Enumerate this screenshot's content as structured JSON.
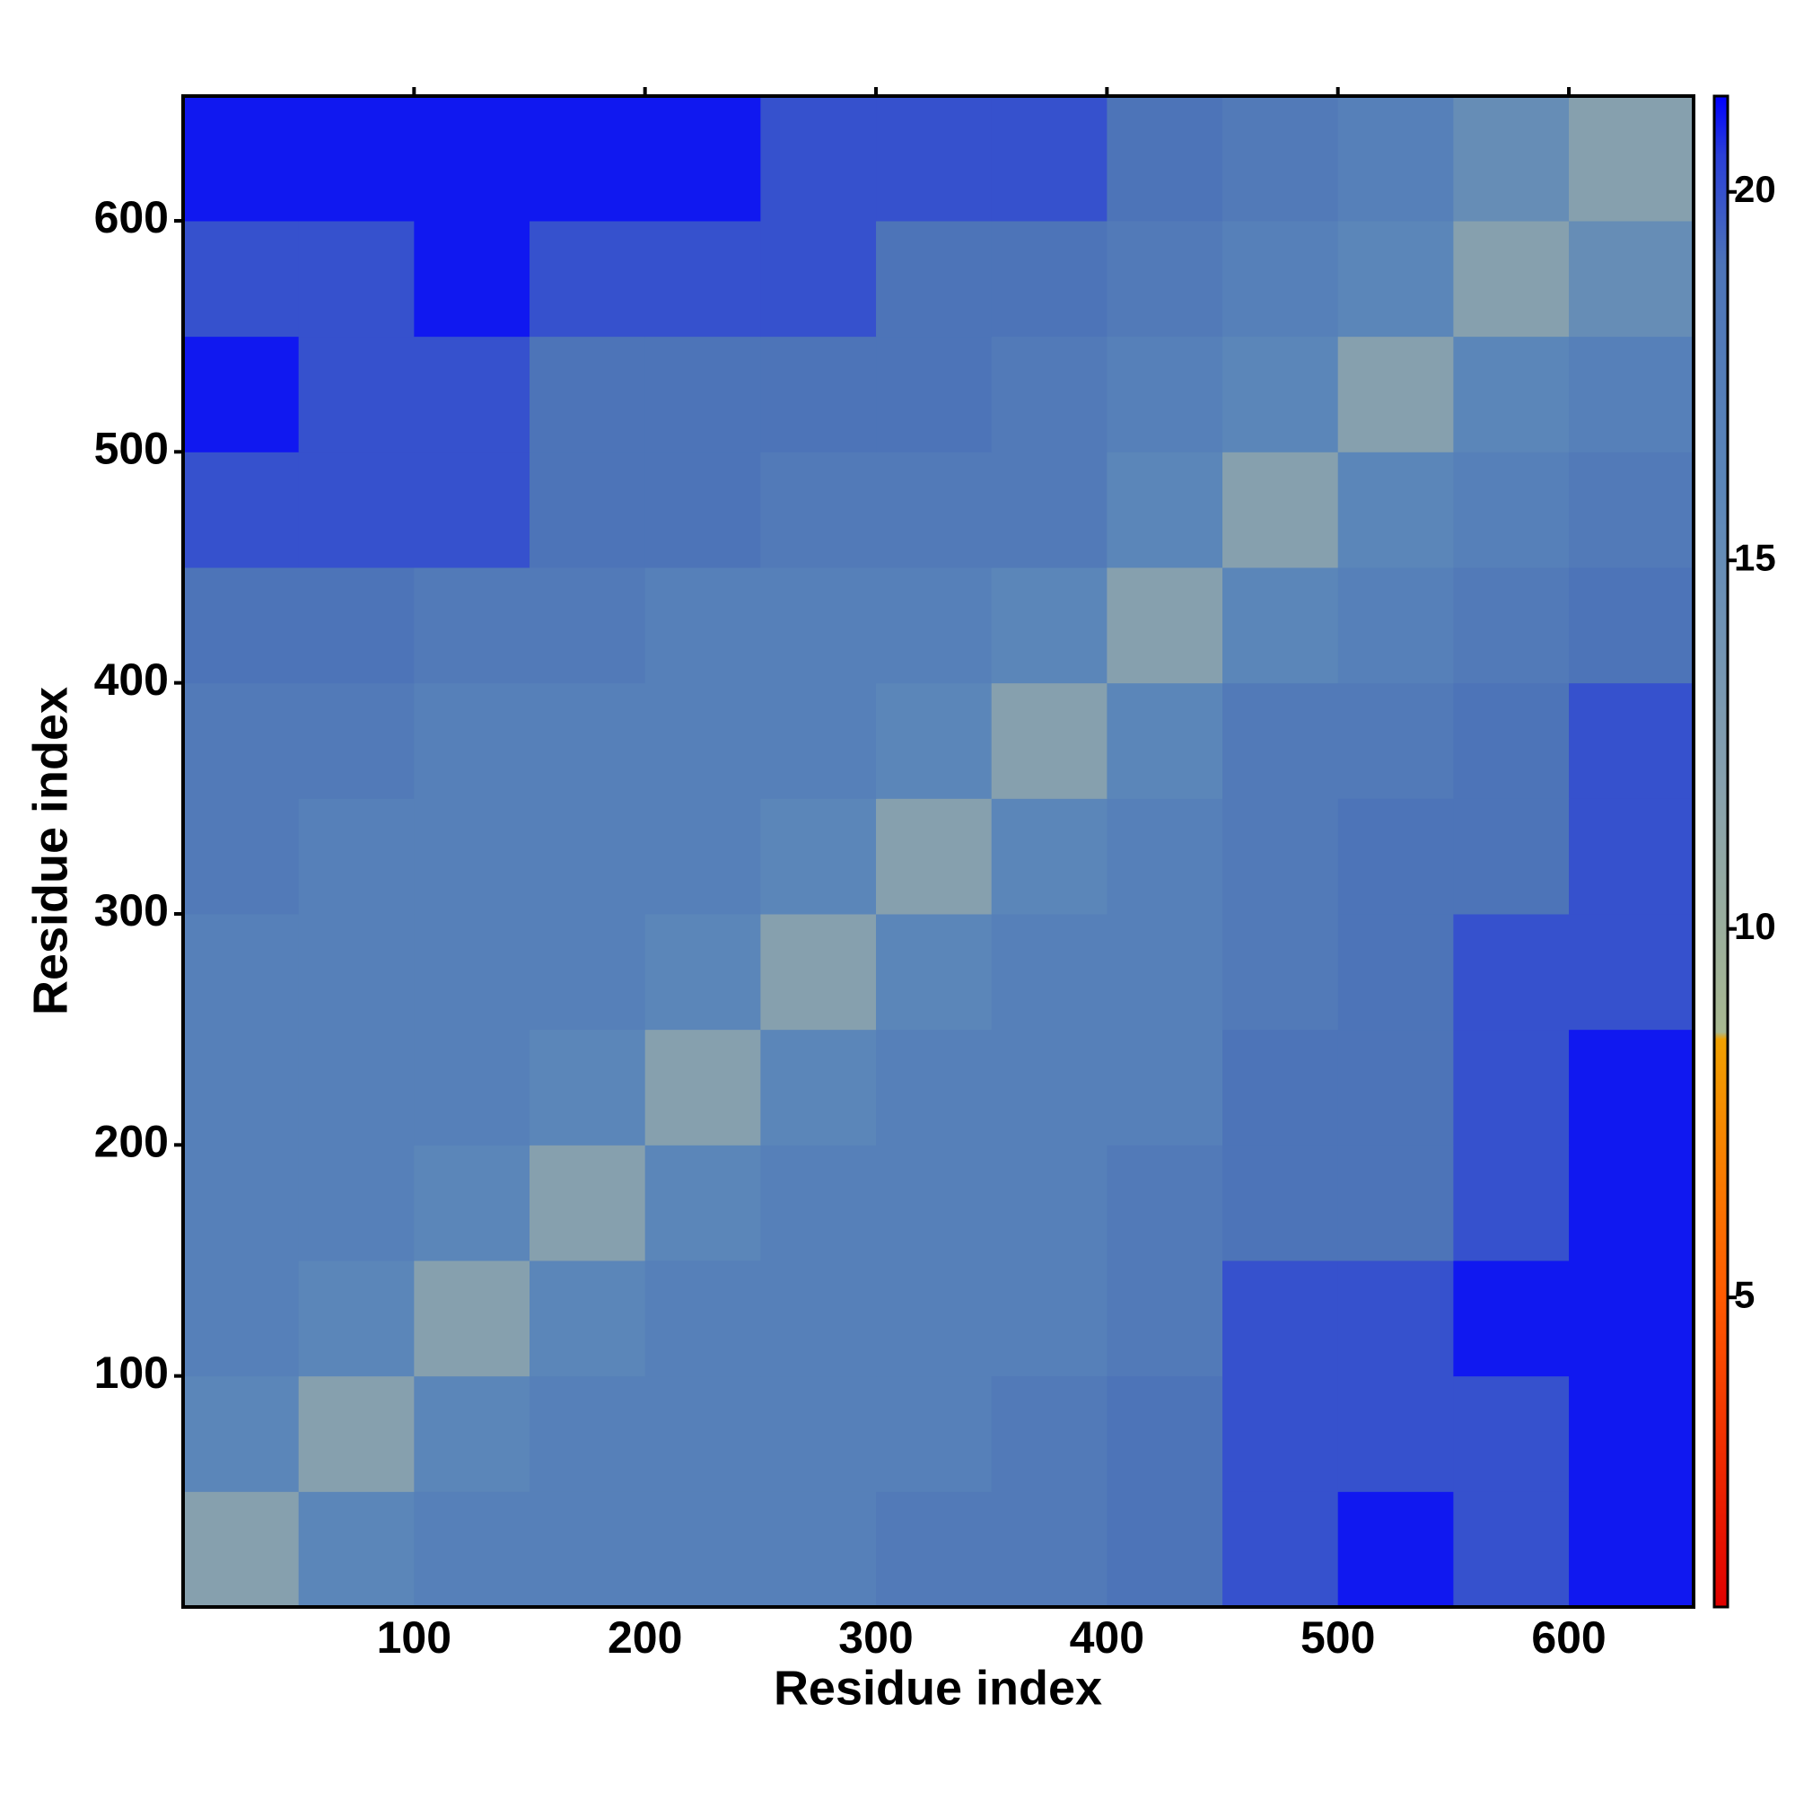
{
  "chart_data": {
    "type": "heatmap",
    "xlabel": "Residue index",
    "ylabel": "Residue index",
    "x_edges": [
      0,
      50,
      100,
      150,
      200,
      250,
      300,
      350,
      400,
      450,
      500,
      550,
      600,
      654
    ],
    "y_edges": [
      0,
      50,
      100,
      150,
      200,
      250,
      300,
      350,
      400,
      450,
      500,
      550,
      600,
      654
    ],
    "z": [
      [
        12,
        16,
        17,
        17,
        17,
        17,
        18,
        18,
        19,
        20,
        21,
        20,
        21
      ],
      [
        16,
        12,
        16,
        17,
        17,
        17,
        17,
        18,
        19,
        20,
        20,
        20,
        21
      ],
      [
        17,
        16,
        12,
        16,
        17,
        17,
        17,
        17,
        18,
        20,
        20,
        21,
        21
      ],
      [
        17,
        17,
        16,
        12,
        16,
        17,
        17,
        17,
        18,
        19,
        19,
        20,
        21
      ],
      [
        17,
        17,
        17,
        16,
        12,
        16,
        17,
        17,
        17,
        19,
        19,
        20,
        21
      ],
      [
        17,
        17,
        17,
        17,
        16,
        12,
        16,
        17,
        17,
        18,
        19,
        20,
        20
      ],
      [
        18,
        17,
        17,
        17,
        17,
        16,
        12,
        16,
        17,
        18,
        19,
        19,
        20
      ],
      [
        18,
        18,
        17,
        17,
        17,
        17,
        16,
        12,
        16,
        18,
        18,
        19,
        20
      ],
      [
        19,
        19,
        18,
        18,
        17,
        17,
        17,
        16,
        12,
        16,
        17,
        18,
        19
      ],
      [
        20,
        20,
        20,
        19,
        19,
        18,
        18,
        18,
        16,
        12,
        16,
        17,
        18
      ],
      [
        21,
        20,
        20,
        19,
        19,
        19,
        19,
        18,
        17,
        16,
        12,
        16,
        17
      ],
      [
        20,
        20,
        21,
        20,
        20,
        20,
        19,
        19,
        18,
        17,
        16,
        12,
        15
      ],
      [
        21,
        21,
        21,
        21,
        21,
        20,
        20,
        20,
        19,
        18,
        17,
        15,
        12
      ]
    ],
    "xlim": [
      0,
      654
    ],
    "ylim": [
      0,
      654
    ],
    "xticks": [
      100,
      200,
      300,
      400,
      500,
      600
    ],
    "yticks": [
      100,
      200,
      300,
      400,
      500,
      600
    ],
    "clim": [
      0.8,
      21.3
    ],
    "cticks": [
      5,
      10,
      15,
      20
    ],
    "colorscale": [
      [
        0.8,
        "#e00000"
      ],
      [
        5,
        "#ff5a00"
      ],
      [
        8.5,
        "#f0a000"
      ],
      [
        8.6,
        "#a8b890"
      ],
      [
        12,
        "#86a0ae"
      ],
      [
        16,
        "#5b86b9"
      ],
      [
        19,
        "#4d74b8"
      ],
      [
        20.5,
        "#2a3fd8"
      ],
      [
        21.3,
        "#0000ff"
      ]
    ]
  }
}
